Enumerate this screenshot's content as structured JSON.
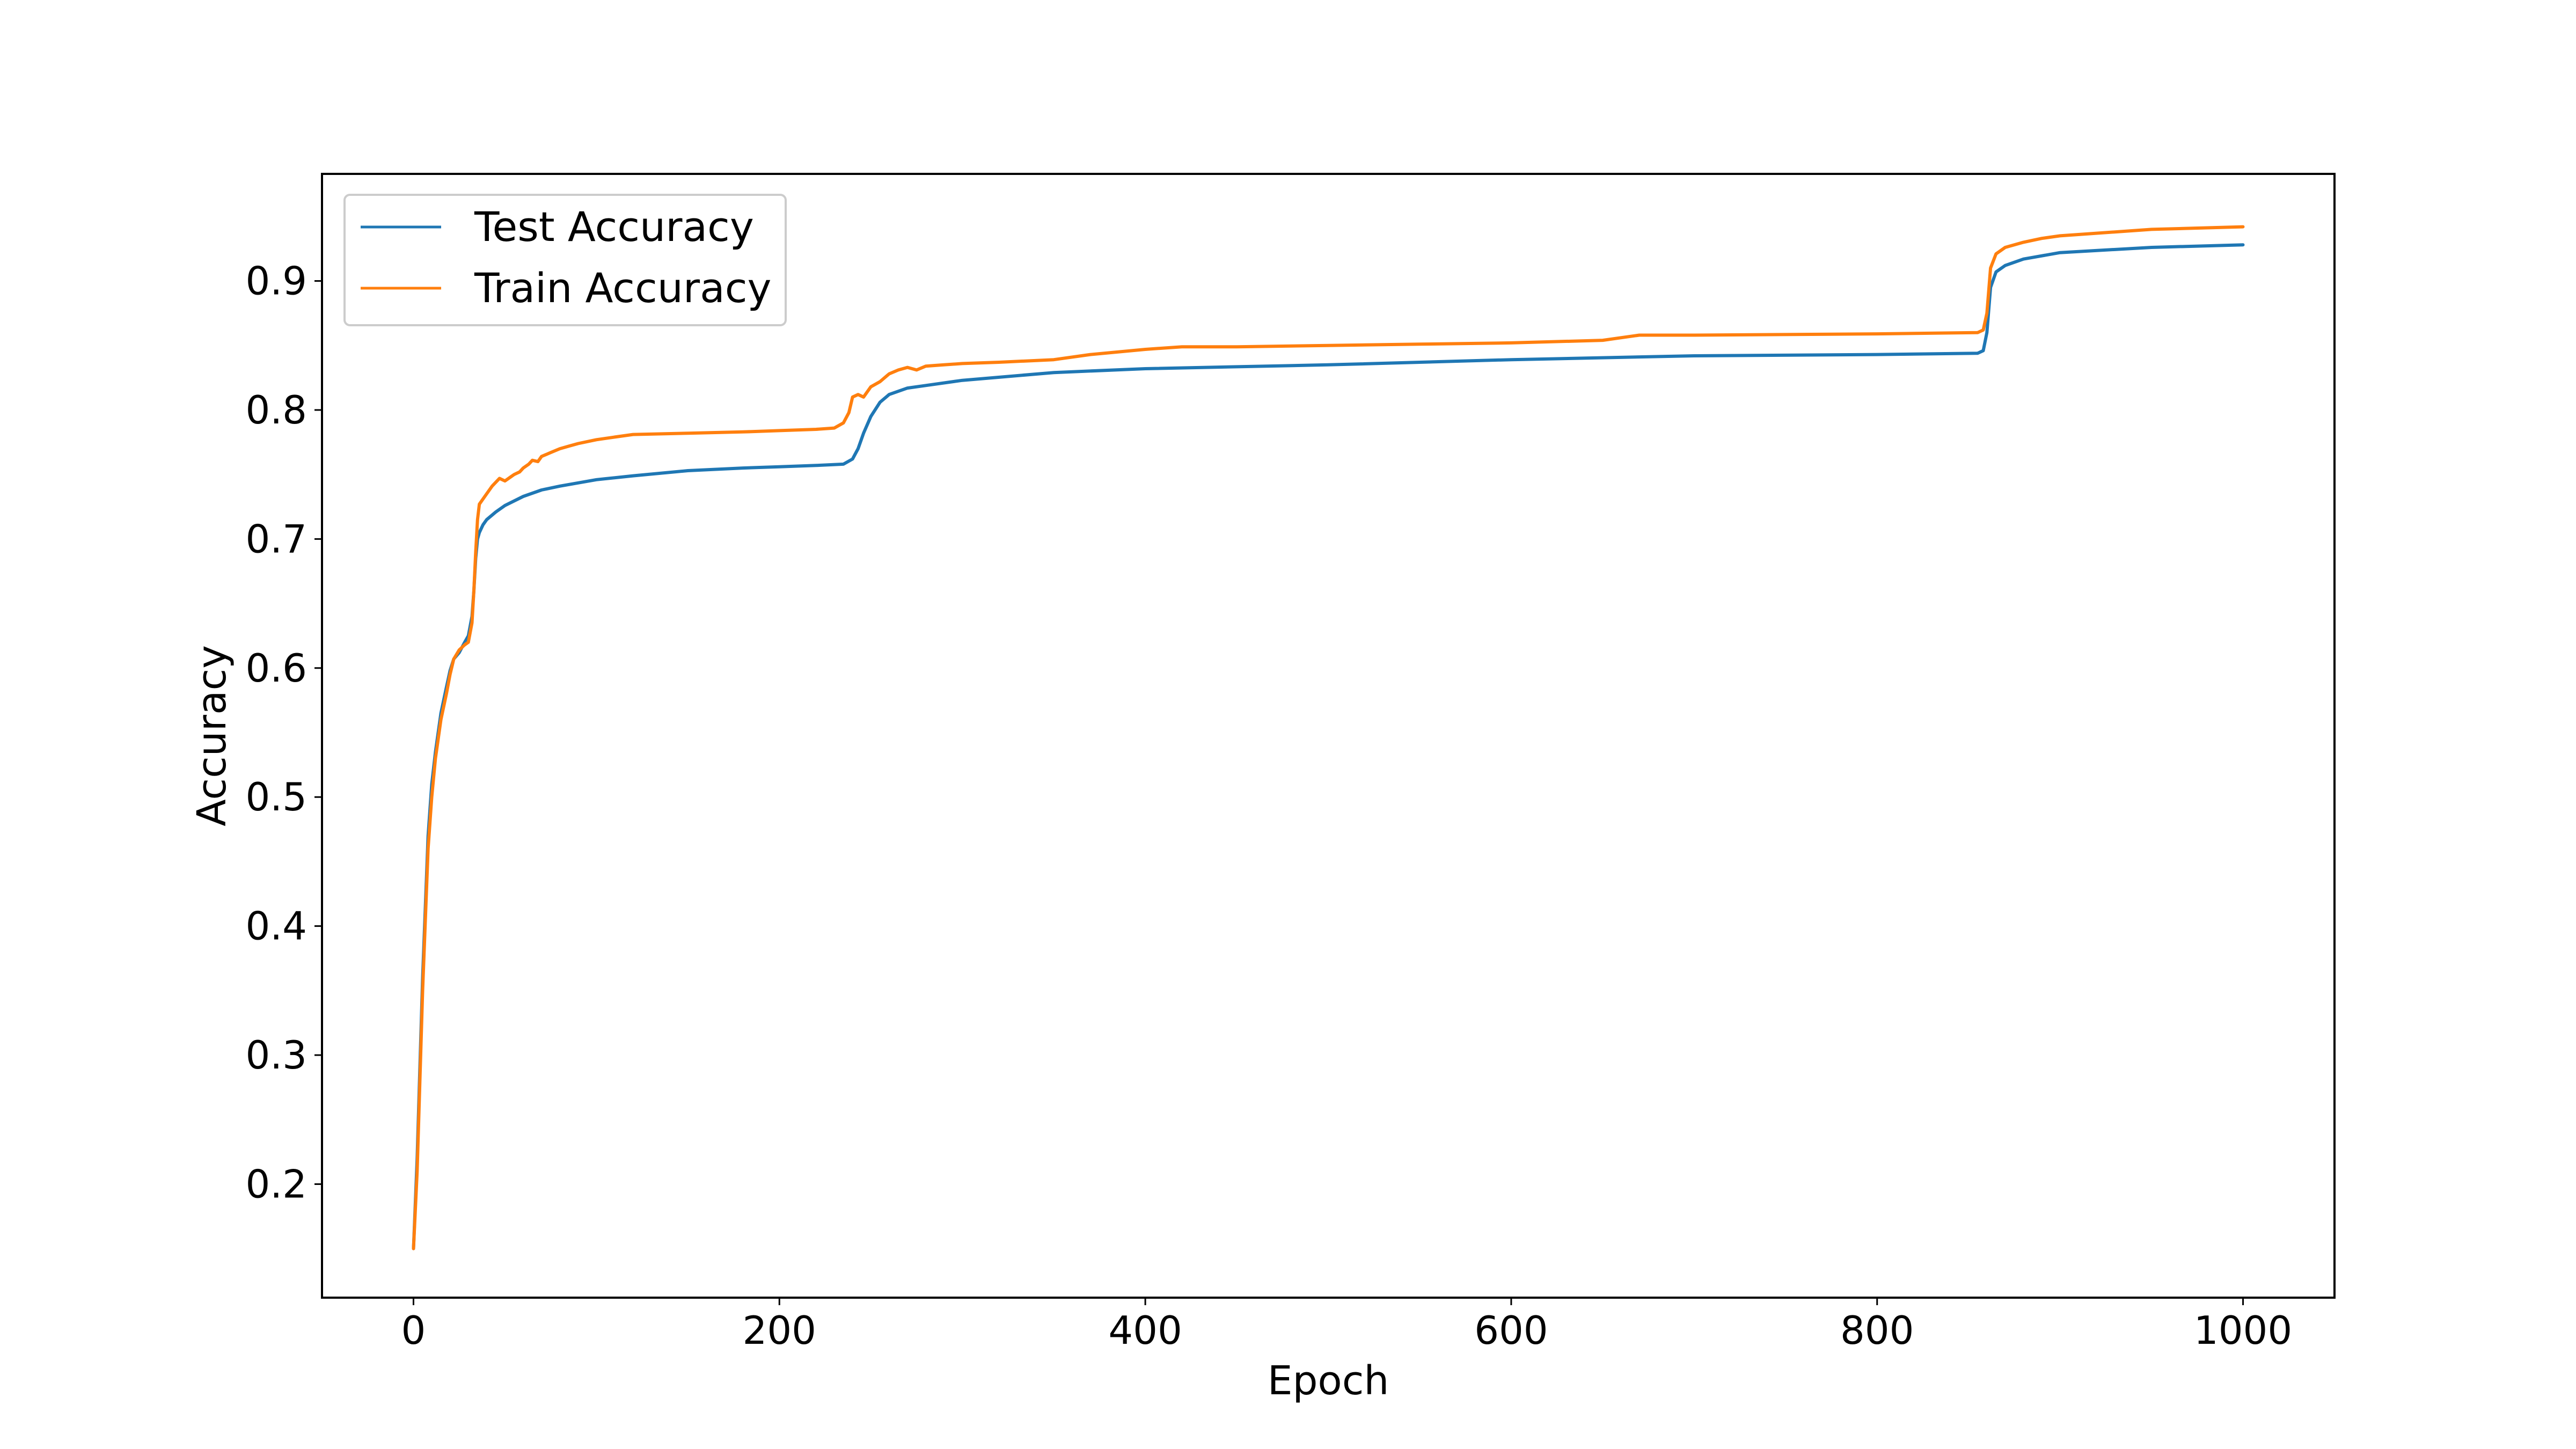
{
  "chart_data": {
    "type": "line",
    "title": "",
    "xlabel": "Epoch",
    "ylabel": "Accuracy",
    "xlim": [
      -50,
      1050
    ],
    "ylim": [
      0.112,
      0.983
    ],
    "xticks": [
      0,
      200,
      400,
      600,
      800,
      1000
    ],
    "xtick_labels": [
      "0",
      "200",
      "400",
      "600",
      "800",
      "1000"
    ],
    "yticks": [
      0.2,
      0.3,
      0.4,
      0.5,
      0.6,
      0.7,
      0.8,
      0.9
    ],
    "ytick_labels": [
      "0.2",
      "0.3",
      "0.4",
      "0.5",
      "0.6",
      "0.7",
      "0.8",
      "0.9"
    ],
    "grid": false,
    "legend_position": "top-left",
    "series": [
      {
        "name": "Test Accuracy",
        "color": "#1f77b4",
        "x": [
          0,
          2,
          5,
          8,
          10,
          12,
          15,
          18,
          20,
          22,
          25,
          28,
          30,
          32,
          33,
          34,
          35,
          36,
          38,
          40,
          45,
          50,
          60,
          70,
          80,
          100,
          120,
          150,
          180,
          200,
          220,
          235,
          240,
          243,
          246,
          250,
          255,
          260,
          270,
          280,
          300,
          350,
          400,
          500,
          600,
          700,
          800,
          855,
          858,
          860,
          862,
          865,
          870,
          880,
          900,
          950,
          1000
        ],
        "y": [
          0.15,
          0.22,
          0.36,
          0.47,
          0.51,
          0.535,
          0.565,
          0.585,
          0.598,
          0.607,
          0.612,
          0.62,
          0.625,
          0.64,
          0.66,
          0.685,
          0.7,
          0.705,
          0.711,
          0.715,
          0.721,
          0.726,
          0.733,
          0.738,
          0.741,
          0.746,
          0.749,
          0.753,
          0.755,
          0.756,
          0.757,
          0.758,
          0.762,
          0.77,
          0.782,
          0.795,
          0.806,
          0.812,
          0.817,
          0.819,
          0.823,
          0.829,
          0.832,
          0.835,
          0.839,
          0.842,
          0.843,
          0.844,
          0.846,
          0.86,
          0.895,
          0.907,
          0.912,
          0.917,
          0.922,
          0.926,
          0.928
        ]
      },
      {
        "name": "Train Accuracy",
        "color": "#ff7f0e",
        "x": [
          0,
          2,
          5,
          8,
          10,
          12,
          15,
          18,
          20,
          22,
          25,
          28,
          30,
          32,
          33,
          34,
          35,
          36,
          38,
          40,
          43,
          45,
          47,
          50,
          53,
          55,
          58,
          60,
          63,
          65,
          68,
          70,
          75,
          80,
          85,
          90,
          100,
          110,
          120,
          150,
          180,
          200,
          220,
          230,
          235,
          238,
          240,
          243,
          246,
          250,
          255,
          260,
          265,
          270,
          275,
          280,
          290,
          300,
          320,
          350,
          370,
          400,
          420,
          450,
          500,
          550,
          600,
          650,
          670,
          700,
          800,
          855,
          858,
          860,
          862,
          865,
          870,
          880,
          890,
          900,
          910,
          950,
          1000
        ],
        "y": [
          0.15,
          0.21,
          0.35,
          0.46,
          0.5,
          0.53,
          0.56,
          0.58,
          0.595,
          0.607,
          0.614,
          0.618,
          0.62,
          0.635,
          0.66,
          0.69,
          0.715,
          0.727,
          0.731,
          0.735,
          0.741,
          0.744,
          0.747,
          0.745,
          0.748,
          0.75,
          0.752,
          0.755,
          0.758,
          0.761,
          0.76,
          0.764,
          0.767,
          0.77,
          0.772,
          0.774,
          0.777,
          0.779,
          0.781,
          0.782,
          0.783,
          0.784,
          0.785,
          0.786,
          0.79,
          0.798,
          0.81,
          0.812,
          0.81,
          0.818,
          0.822,
          0.828,
          0.831,
          0.833,
          0.831,
          0.834,
          0.835,
          0.836,
          0.837,
          0.839,
          0.843,
          0.847,
          0.849,
          0.849,
          0.85,
          0.851,
          0.852,
          0.854,
          0.858,
          0.858,
          0.859,
          0.86,
          0.862,
          0.875,
          0.91,
          0.921,
          0.926,
          0.93,
          0.933,
          0.935,
          0.936,
          0.94,
          0.942
        ]
      }
    ]
  }
}
